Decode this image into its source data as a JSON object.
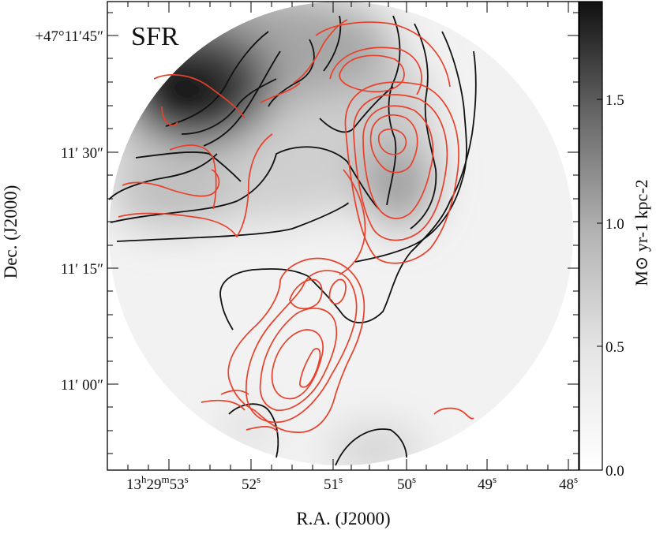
{
  "chart_data": {
    "type": "heatmap",
    "panel_label": "SFR",
    "xlabel": "R.A. (J2000)",
    "ylabel": "Dec. (J2000)",
    "colorbar_label": "M⊙ yr-1 kpc-2",
    "colorbar": {
      "range": [
        0.0,
        1.9
      ],
      "ticks": [
        "0.0",
        "0.5",
        "1.0",
        "1.5"
      ],
      "tick_values": [
        0.0,
        0.5,
        1.0,
        1.5
      ],
      "colormap": "white-to-black"
    },
    "x_ticks": [
      {
        "label": "13h29m53s",
        "ra_sec": 53
      },
      {
        "label": "52s",
        "ra_sec": 52
      },
      {
        "label": "51s",
        "ra_sec": 51
      },
      {
        "label": "50s",
        "ra_sec": 50
      },
      {
        "label": "49s",
        "ra_sec": 49
      },
      {
        "label": "48s",
        "ra_sec": 48
      }
    ],
    "y_ticks": [
      {
        "label": "+47°11′45″",
        "dec_arcsec": 45
      },
      {
        "label": "11′ 30″",
        "dec_arcsec": 30
      },
      {
        "label": "11′ 15″",
        "dec_arcsec": 15
      },
      {
        "label": "11′ 00″",
        "dec_arcsec": 0
      }
    ],
    "x_range_ra_sec": [
      53.6,
      47.95
    ],
    "y_range_dec_arcsec": [
      -11,
      56
    ],
    "contours": [
      {
        "color": "#111111",
        "name": ""
      },
      {
        "color": "#e8402a",
        "name": ""
      }
    ],
    "map_peak": {
      "ra_sec": 52.6,
      "dec_arcsec": 40,
      "value": 1.85
    }
  }
}
